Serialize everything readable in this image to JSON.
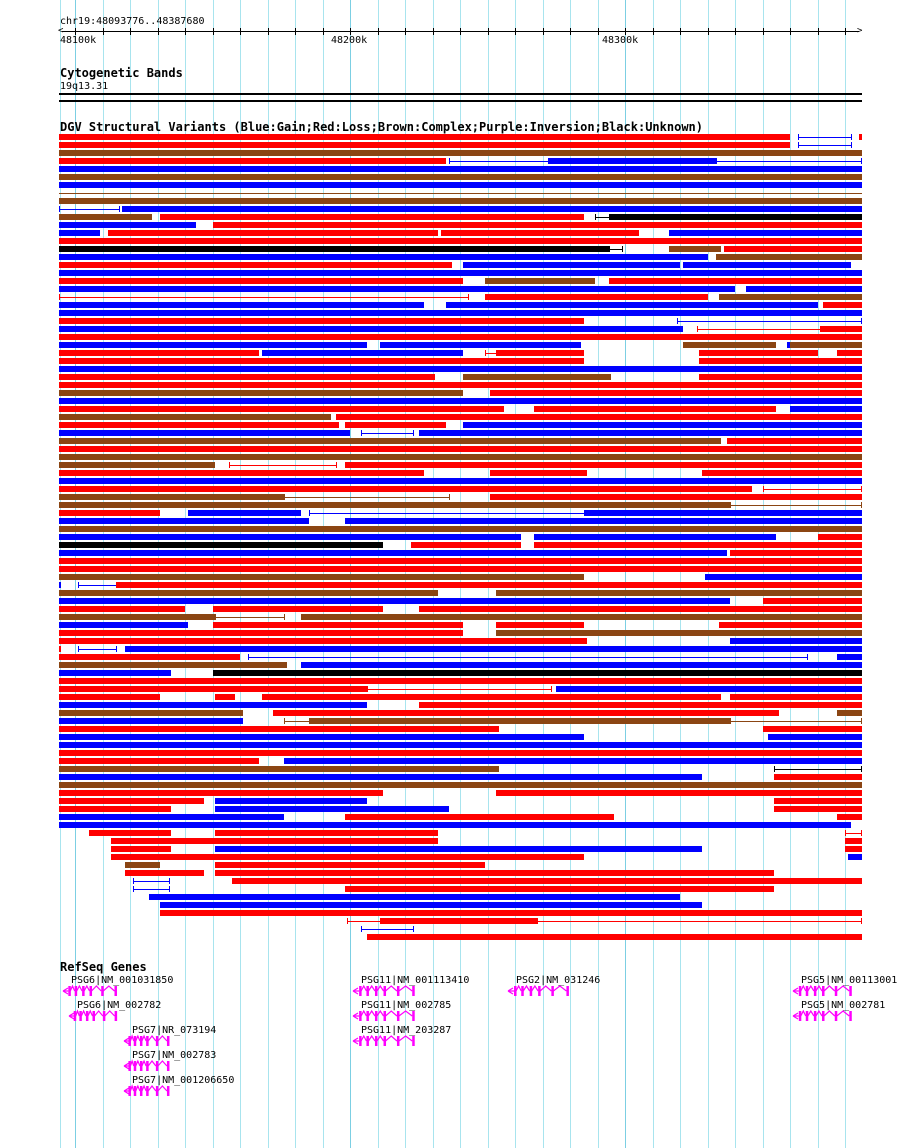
{
  "header": {
    "location": "chr19:48093776..48387680"
  },
  "ruler": {
    "unit": "kb",
    "range_kb": [
      48093.776,
      48387.68
    ],
    "major_ticks_kb": [
      48100,
      48200,
      48300
    ],
    "major_labels": [
      "48100k",
      "48200k",
      "48300k"
    ],
    "minor_tick_step_kb": 10
  },
  "cytoband": {
    "title": "Cytogenetic Bands",
    "band": "19q13.31"
  },
  "sv": {
    "title": "DGV Structural Variants (Blue:Gain;Red:Loss;Brown:Complex;Purple:Inversion;Black:Unknown)",
    "coord_unit": "kb offset from 48000k",
    "colors": {
      "gain": "#0000ff",
      "loss": "#ff0000",
      "complex": "#8b4513",
      "inversion": "#800080",
      "unknown": "#000000"
    },
    "type_codes": {
      "B": "gain",
      "R": "loss",
      "N": "complex",
      "P": "inversion",
      "K": "unknown"
    },
    "rows": [
      "R94-360 b363-382 R385-386",
      "R94-360 b363-382",
      "N94-387",
      "R94-235 b236-272 B272-333 b333-387",
      "B94-387",
      "N94-387",
      "B94-387",
      "n94-387",
      "N94-387",
      "b94-116 B117-387",
      "N94-128 R131-285 k289-294 K294-387",
      "B94-144 R150-387",
      "B94-109 R112-232 R233-305 B316-387",
      "R94-387",
      "K94-294 k294-299 N316-335 R336-387",
      "B94-330 N333-387",
      "R94-237 B241-320 B321-382",
      "B94-387",
      "R94-241 N249-289 R294-387",
      "B94-340 B344-387",
      "r94-243 R249-330 N334-387",
      "B94-227 B235-370 R372-387",
      "B94-387",
      "R94-285 b319-387",
      "B94-321 r326-371 R371-387",
      "R94-387",
      "B94-206 B211-284 N321-355 B359-360 N360-387",
      "R94-167 B168-241 r249-253 R253-285 R327-370 R377-387",
      "R94-285 R327-387",
      "B94-387",
      "R94-231 N241-295 R327-387",
      "R94-387",
      "N94-241 R251-387",
      "B94-387",
      "R94-256 R267-355 B360-387",
      "N94-193 R195-387",
      "R94-196 R198-235 B241-387",
      "B94-200 b204-223 B225-387",
      "N94-335 R337-387",
      "R94-387",
      "N94-387",
      "N94-151 r156-195 R198-387",
      "R94-227 R251-286 R328-387",
      "B94-387",
      "R94-346 r350-387",
      "N94-176 n176-236 R251-387",
      "N94-338 n338-387",
      "R94-131 B141-182 b185-285 B285-387",
      "B94-185 B198-387",
      "N94-387",
      "B94-262 B267-355 R370-387",
      "K94-212 R222-262 R267-387",
      "B94-337 R338-387",
      "R94-387",
      "R94-387",
      "N94-285 B329-387",
      "B94-95 b101-115 R115-387",
      "N94-232 N253-387",
      "B94-338 R350-387",
      "R94-140 R150-212 R225-387",
      "N94-151 n151-176 N182-387",
      "B94-141 R150-241 R253-285 R334-387",
      "R94-241 N253-387",
      "R94-286 B338-387",
      "R94-95 b101-115 B118-387",
      "R94-160 b163-366 B377-387",
      "N94-177 B182-386",
      "B94-135 K150-387",
      "R94-387",
      "R94-206 r206-273 B275-387",
      "R94-131 R151-158 R168-335 R338-387",
      "B94-206 R225-386",
      "N94-161 R172-356 N377-387",
      "B94-161 n176-185 N185-338 n338-387",
      "R94-254 R350-387",
      "B94-285 B352-387",
      "B94-387",
      "R94-387",
      "R94-167 B176-387",
      "N94-254 k354-387",
      "B94-328 R354-387",
      "N94-387",
      "R94-212 R253-387",
      "R94-147 B151-206 R354-387",
      "R94-135 B151-236 R354-387",
      "B94-176 R198-296 R377-387",
      "B94-382",
      "R105-135 R151-232 r380-387",
      "R113-232 R380-387",
      "R113-135 B151-328 R380-387",
      "R113-285 B381-387",
      "N118-131 R151-249",
      "R118-147 R151-354",
      "b121-134 R157-387",
      "b121-134 R198-354",
      "B127-320",
      "B131-328",
      "R131-387",
      "r199-211 R211-268 r268-387",
      "b204-223",
      "R206-387"
    ]
  },
  "genes": {
    "title": "RefSeq Genes",
    "color": "#ff00ff",
    "items": [
      {
        "label": "PSG6|NM_001031850",
        "start_kb": 95.6,
        "end_kb": 114.9,
        "strand": "-",
        "row": 0
      },
      {
        "label": "PSG6|NM_002782",
        "start_kb": 97.8,
        "end_kb": 114.9,
        "strand": "-",
        "row": 1
      },
      {
        "label": "PSG7|NR_073194",
        "start_kb": 117.8,
        "end_kb": 133.9,
        "strand": "-",
        "row": 2
      },
      {
        "label": "PSG7|NM_002783",
        "start_kb": 117.8,
        "end_kb": 133.9,
        "strand": "-",
        "row": 3
      },
      {
        "label": "PSG7|NM_001206650",
        "start_kb": 117.8,
        "end_kb": 133.9,
        "strand": "-",
        "row": 4
      },
      {
        "label": "PSG11|NM_001113410",
        "start_kb": 201.2,
        "end_kb": 223.4,
        "strand": "-",
        "row": 0
      },
      {
        "label": "PSG11|NM_002785",
        "start_kb": 201.2,
        "end_kb": 223.4,
        "strand": "-",
        "row": 1
      },
      {
        "label": "PSG11|NM_203287",
        "start_kb": 201.2,
        "end_kb": 223.4,
        "strand": "-",
        "row": 2
      },
      {
        "label": "PSG2|NM_031246",
        "start_kb": 257.6,
        "end_kb": 279.5,
        "strand": "-",
        "row": 0
      },
      {
        "label": "PSG5|NM_00113001",
        "start_kb": 361.0,
        "end_kb": 382.1,
        "strand": "-",
        "row": 0
      },
      {
        "label": "PSG5|NM_002781",
        "start_kb": 361.0,
        "end_kb": 382.1,
        "strand": "-",
        "row": 1
      }
    ]
  }
}
